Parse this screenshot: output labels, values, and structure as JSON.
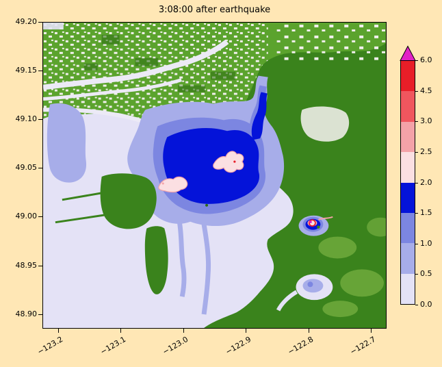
{
  "figure": {
    "title": "3:08:00 after earthquake",
    "background_color": "#ffe7b5"
  },
  "chart_data": {
    "type": "heatmap",
    "title": "3:08:00 after earthquake",
    "description": "Geographic tsunami wave-height map (filled contour). Green areas are dry land, pale lavender is water/flooding below 0.5, periwinkle and deep blue bands (0.5-2.0) fill the central bay and a channel to the northeast, pale-pink islands (2.0-3.0) sit inside the deep blue bay core, and a small hotspot with red/magenta values (3.0-6.0+) lies on the eastern shore near 49.0, -122.8.",
    "legend_position": "right",
    "grid": false,
    "x_axis": {
      "label": "",
      "tick_labels": [
        "−123.2",
        "−123.1",
        "−123.0",
        "−122.9",
        "−122.8",
        "−122.7"
      ],
      "tick_values": [
        -123.2,
        -123.1,
        -123.0,
        -122.9,
        -122.8,
        -122.7
      ],
      "range": [
        -123.225,
        -122.675
      ],
      "rotation_deg": 30
    },
    "y_axis": {
      "label": "",
      "tick_labels": [
        "49.20",
        "49.15",
        "49.10",
        "49.05",
        "49.00",
        "48.95",
        "48.90"
      ],
      "tick_values": [
        49.2,
        49.15,
        49.1,
        49.05,
        49.0,
        48.95,
        48.9
      ],
      "range": [
        48.885,
        49.2
      ]
    },
    "colorbar": {
      "orientation": "vertical",
      "extend": "max",
      "tick_labels": [
        "0.0",
        "0.5",
        "1.0",
        "1.5",
        "2.0",
        "2.5",
        "3.0",
        "4.5",
        "6.0"
      ],
      "tick_values": [
        0.0,
        0.5,
        1.0,
        1.5,
        2.0,
        2.5,
        3.0,
        4.5,
        6.0
      ],
      "segments": [
        {
          "from": 0.0,
          "to": 0.5,
          "color": "#e4e2f6"
        },
        {
          "from": 0.5,
          "to": 1.0,
          "color": "#a7ade9"
        },
        {
          "from": 1.0,
          "to": 1.5,
          "color": "#7c86e1"
        },
        {
          "from": 1.5,
          "to": 2.0,
          "color": "#0413d9"
        },
        {
          "from": 2.0,
          "to": 2.5,
          "color": "#fbdfe2"
        },
        {
          "from": 2.5,
          "to": 3.0,
          "color": "#f4a2a8"
        },
        {
          "from": 3.0,
          "to": 4.5,
          "color": "#f0565e"
        },
        {
          "from": 4.5,
          "to": 6.0,
          "color": "#e81e28"
        }
      ],
      "over_color": "#e221c6"
    }
  },
  "palette": {
    "sea": "#e4e2f6",
    "flood1": "#a7ade9",
    "flood2": "#7c86e1",
    "flood3": "#0413d9",
    "land": "#3a831c",
    "land_bright": "#5ba32d",
    "land_light": "#8cbf4e",
    "dark_green": "#2c6e12",
    "urban": "#f1efec",
    "river": "#eceaf6",
    "pink_pale": "#fbdfe2",
    "pink": "#f4a2a8",
    "red": "#e81e28",
    "magenta": "#e221c6"
  }
}
